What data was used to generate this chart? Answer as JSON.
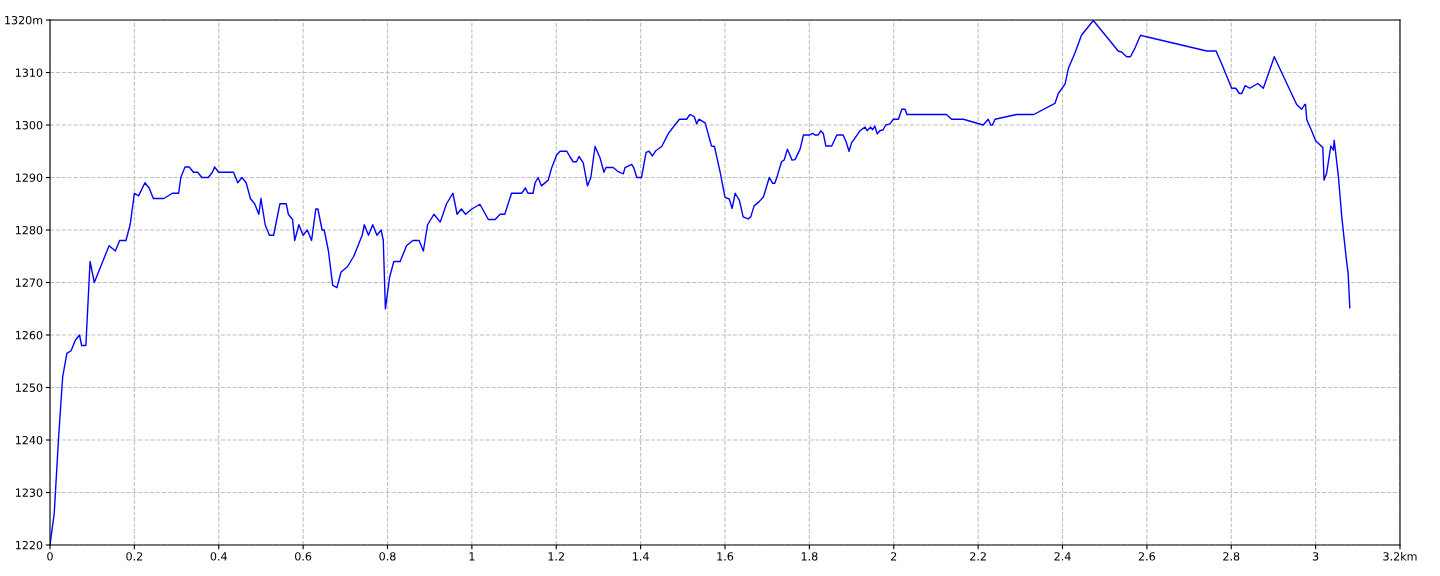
{
  "chart_data": {
    "type": "line",
    "x": [
      0,
      0.01,
      0.02,
      0.03,
      0.04,
      0.05,
      0.06,
      0.07,
      0.075,
      0.085,
      0.095,
      0.105,
      0.12,
      0.14,
      0.155,
      0.165,
      0.18,
      0.19,
      0.2,
      0.21,
      0.225,
      0.235,
      0.245,
      0.27,
      0.29,
      0.305,
      0.31,
      0.32,
      0.33,
      0.34,
      0.35,
      0.36,
      0.375,
      0.385,
      0.39,
      0.4,
      0.42,
      0.435,
      0.445,
      0.455,
      0.465,
      0.475,
      0.485,
      0.495,
      0.5,
      0.51,
      0.52,
      0.53,
      0.545,
      0.56,
      0.565,
      0.575,
      0.58,
      0.59,
      0.6,
      0.61,
      0.62,
      0.63,
      0.635,
      0.645,
      0.65,
      0.66,
      0.67,
      0.68,
      0.69,
      0.705,
      0.72,
      0.74,
      0.745,
      0.755,
      0.765,
      0.775,
      0.785,
      0.79,
      0.795,
      0.805,
      0.815,
      0.83,
      0.845,
      0.86,
      0.875,
      0.885,
      0.895,
      0.91,
      0.925,
      0.94,
      0.955,
      0.965,
      0.975,
      0.985,
      1.0,
      1.019,
      1.039,
      1.055,
      1.067,
      1.078,
      1.094,
      1.118,
      1.127,
      1.133,
      1.145,
      1.15,
      1.157,
      1.165,
      1.181,
      1.189,
      1.201,
      1.209,
      1.225,
      1.232,
      1.24,
      1.248,
      1.254,
      1.264,
      1.274,
      1.282,
      1.292,
      1.304,
      1.313,
      1.318,
      1.335,
      1.347,
      1.359,
      1.363,
      1.379,
      1.384,
      1.391,
      1.402,
      1.413,
      1.42,
      1.428,
      1.436,
      1.45,
      1.466,
      1.481,
      1.492,
      1.509,
      1.517,
      1.527,
      1.533,
      1.538,
      1.553,
      1.568,
      1.575,
      1.588,
      1.6,
      1.61,
      1.617,
      1.624,
      1.634,
      1.643,
      1.655,
      1.661,
      1.669,
      1.681,
      1.691,
      1.705,
      1.713,
      1.718,
      1.724,
      1.734,
      1.74,
      1.748,
      1.759,
      1.766,
      1.778,
      1.786,
      1.801,
      1.808,
      1.813,
      1.821,
      1.827,
      1.833,
      1.839,
      1.853,
      1.865,
      1.88,
      1.887,
      1.894,
      1.9,
      1.908,
      1.92,
      1.932,
      1.937,
      1.945,
      1.95,
      1.955,
      1.961,
      1.967,
      1.975,
      1.981,
      1.991,
      1.999,
      2.011,
      2.019,
      2.027,
      2.031,
      2.125,
      2.137,
      2.165,
      2.212,
      2.224,
      2.23,
      2.234,
      2.24,
      2.291,
      2.332,
      2.382,
      2.39,
      2.406,
      2.414,
      2.429,
      2.445,
      2.473,
      2.532,
      2.54,
      2.552,
      2.561,
      2.572,
      2.585,
      2.599,
      2.742,
      2.764,
      2.777,
      2.801,
      2.811,
      2.819,
      2.825,
      2.833,
      2.844,
      2.863,
      2.876,
      2.902,
      2.955,
      2.967,
      2.974,
      2.976,
      2.979,
      2.99,
      3.0,
      3.017,
      3.02,
      3.026,
      3.036,
      3.042,
      3.044,
      3.054,
      3.062,
      3.073,
      3.077,
      3.081
    ],
    "series": [
      {
        "color": "#0000ff",
        "values": [
          1220,
          1226,
          1240,
          1252,
          1256.5,
          1257,
          1259,
          1260,
          1258,
          1258,
          1274,
          1270,
          1273,
          1277,
          1276,
          1278,
          1278,
          1281,
          1287,
          1286.5,
          1289,
          1288,
          1286,
          1286,
          1287,
          1287,
          1290,
          1292,
          1292,
          1291,
          1291,
          1290,
          1290,
          1291,
          1292,
          1291,
          1291,
          1291,
          1289,
          1290,
          1289,
          1286,
          1285,
          1283,
          1286,
          1281,
          1279,
          1279,
          1285,
          1285,
          1283,
          1282,
          1278,
          1281,
          1279,
          1280,
          1278,
          1284,
          1284,
          1280,
          1280,
          1276,
          1269.5,
          1269,
          1272,
          1273,
          1275,
          1279,
          1281,
          1279,
          1281,
          1279,
          1280,
          1278,
          1265,
          1271,
          1274,
          1274,
          1277,
          1278,
          1278,
          1276,
          1281,
          1283,
          1281.5,
          1285,
          1287,
          1283,
          1284,
          1283,
          1284,
          1284.9,
          1282,
          1282,
          1283,
          1283,
          1287,
          1287,
          1288,
          1287,
          1287,
          1289,
          1290,
          1288.4,
          1289.5,
          1291.8,
          1294.3,
          1295,
          1295,
          1294,
          1293,
          1293,
          1294,
          1292.8,
          1288.4,
          1290,
          1295.9,
          1293.7,
          1291,
          1291.9,
          1291.9,
          1291.1,
          1290.7,
          1291.9,
          1292.5,
          1291.8,
          1290,
          1290,
          1294.8,
          1295,
          1294.1,
          1295.1,
          1295.9,
          1298.4,
          1300,
          1301.1,
          1301.1,
          1302,
          1301.6,
          1300.2,
          1301.1,
          1300.4,
          1296,
          1295.9,
          1291.2,
          1286.2,
          1285.9,
          1284.1,
          1287,
          1285.7,
          1282.5,
          1282.1,
          1282.5,
          1284.6,
          1285.4,
          1286.3,
          1290,
          1288.9,
          1288.9,
          1290.3,
          1293,
          1293.3,
          1295.4,
          1293.3,
          1293.4,
          1295.4,
          1298.1,
          1298.1,
          1298.4,
          1298.1,
          1298.1,
          1298.9,
          1298.4,
          1296,
          1296,
          1298.1,
          1298.1,
          1296.8,
          1295,
          1296.6,
          1297.5,
          1298.9,
          1299.6,
          1298.9,
          1299.6,
          1299.1,
          1299.8,
          1298.3,
          1298.9,
          1299.1,
          1300,
          1300.2,
          1301.1,
          1301.1,
          1303,
          1303,
          1302,
          1302,
          1301.1,
          1301.1,
          1300,
          1301.1,
          1300,
          1300,
          1301.1,
          1302,
          1302,
          1304.1,
          1306,
          1307.8,
          1310.8,
          1313.6,
          1317.1,
          1319.9,
          1314.1,
          1313.9,
          1313,
          1313,
          1314.7,
          1317.1,
          1316.8,
          1314.1,
          1314.1,
          1311.7,
          1307,
          1307,
          1306,
          1306,
          1307.5,
          1307,
          1307.9,
          1307,
          1313,
          1303.9,
          1303,
          1303.9,
          1303.9,
          1301,
          1299,
          1297,
          1295.7,
          1289.5,
          1290.8,
          1296,
          1295.2,
          1297.1,
          1290.2,
          1282.5,
          1274.3,
          1271.8,
          1265.2
        ]
      }
    ],
    "xlim": [
      0,
      3.2
    ],
    "xticks": [
      0,
      0.2,
      0.4,
      0.6,
      0.8,
      1,
      1.2,
      1.4,
      1.6,
      1.8,
      2,
      2.2,
      2.4,
      2.6,
      2.8,
      3,
      {
        "value": 3.2,
        "label": "3.2km"
      }
    ],
    "ylim": [
      1220,
      1320
    ],
    "yticks": [
      1220,
      1230,
      1240,
      1250,
      1260,
      1270,
      1280,
      1290,
      1300,
      1310,
      {
        "value": 1320,
        "label": "1320m"
      }
    ],
    "grid": true,
    "line_style": "solid",
    "marker": "none"
  }
}
